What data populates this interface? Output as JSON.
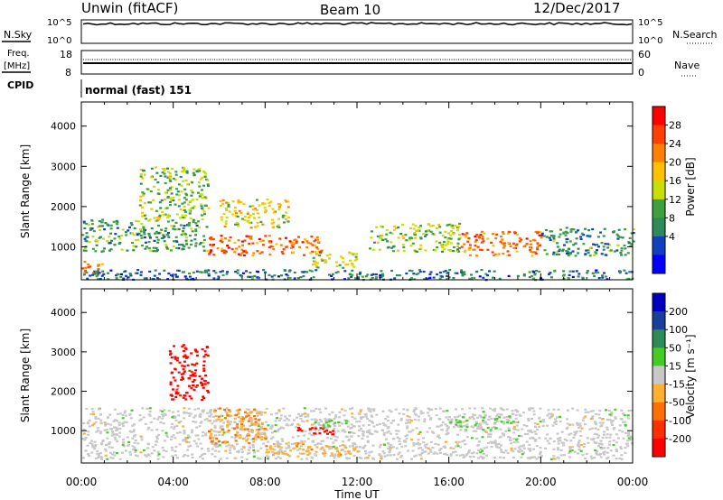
{
  "header": {
    "station": "Unwin (fitACF)",
    "beam": "Beam 10",
    "date": "12/Dec/2017"
  },
  "nsky_panel": {
    "left_label": "N.Sky",
    "right_label": "N.Search",
    "left_ticks": [
      "10^5",
      "10^0"
    ],
    "right_ticks": [
      "10^5",
      "10^0"
    ]
  },
  "freq_panel": {
    "left_label_1": "Freq.",
    "left_label_2": "[MHz]",
    "right_label": "Nave",
    "left_ticks": [
      "18",
      "8"
    ],
    "right_ticks": [
      "60",
      "0"
    ]
  },
  "cpid_panel": {
    "label": "CPID",
    "mode": "normal (fast) 151"
  },
  "chart_data": [
    {
      "type": "heatmap",
      "name": "power",
      "xlabel": "Time UT",
      "ylabel": "Slant Range [km]",
      "x_ticks": [
        "00:00",
        "04:00",
        "08:00",
        "12:00",
        "16:00",
        "20:00",
        "00:00"
      ],
      "x_range_hours": [
        0,
        24
      ],
      "y_ticks": [
        1000,
        2000,
        3000,
        4000
      ],
      "y_range_km": [
        180,
        4600
      ],
      "colorbar_label": "Power [dB]",
      "colorbar_ticks": [
        "28",
        "24",
        "20",
        "16",
        "12",
        "8",
        "4"
      ],
      "colorbar_colors": [
        "#ff0000",
        "#ff4000",
        "#ff8000",
        "#ffc000",
        "#c8e000",
        "#40a040",
        "#2e8b57",
        "#1040c0",
        "#0000ff"
      ],
      "value_range": [
        0,
        32
      ],
      "features": [
        {
          "t0": 0.0,
          "t1": 1.0,
          "r0": 350,
          "r1": 700,
          "value": 26
        },
        {
          "t0": 0.0,
          "t1": 5.5,
          "r0": 900,
          "r1": 1700,
          "value": 11
        },
        {
          "t0": 2.5,
          "t1": 5.5,
          "r0": 1700,
          "r1": 3000,
          "value": 14
        },
        {
          "t0": 5.5,
          "t1": 10.5,
          "r0": 800,
          "r1": 1300,
          "value": 25
        },
        {
          "t0": 6.0,
          "t1": 9.0,
          "r0": 1500,
          "r1": 2200,
          "value": 18
        },
        {
          "t0": 10.0,
          "t1": 12.0,
          "r0": 500,
          "r1": 900,
          "value": 16
        },
        {
          "t0": 12.5,
          "t1": 16.5,
          "r0": 900,
          "r1": 1600,
          "value": 14
        },
        {
          "t0": 16.5,
          "t1": 20.0,
          "r0": 800,
          "r1": 1400,
          "value": 24
        },
        {
          "t0": 20.0,
          "t1": 24.0,
          "r0": 800,
          "r1": 1500,
          "value": 10
        },
        {
          "t0": 0.0,
          "t1": 24.0,
          "r0": 200,
          "r1": 450,
          "value": 8
        }
      ]
    },
    {
      "type": "heatmap",
      "name": "velocity",
      "xlabel": "Time UT",
      "ylabel": "Slant Range [km]",
      "x_ticks": [
        "00:00",
        "04:00",
        "08:00",
        "12:00",
        "16:00",
        "20:00",
        "00:00"
      ],
      "x_range_hours": [
        0,
        24
      ],
      "y_ticks": [
        1000,
        2000,
        3000,
        4000
      ],
      "y_range_km": [
        180,
        4600
      ],
      "colorbar_label": "Velocity [m s⁻¹]",
      "colorbar_ticks": [
        "200",
        "100",
        "50",
        "15",
        "-15",
        "-50",
        "-100",
        "-200"
      ],
      "colorbar_colors": [
        "#0000c0",
        "#1a3f9a",
        "#2e8b57",
        "#44cc22",
        "#c8c8c8",
        "#ffb030",
        "#ff7000",
        "#ff3000",
        "#ff0000"
      ],
      "value_range": [
        -250,
        250
      ],
      "features": [
        {
          "t0": 0.0,
          "t1": 24.0,
          "r0": 300,
          "r1": 1600,
          "value": 0
        },
        {
          "t0": 3.8,
          "t1": 5.5,
          "r0": 1800,
          "r1": 3200,
          "value": -220
        },
        {
          "t0": 5.5,
          "t1": 8.0,
          "r0": 700,
          "r1": 1600,
          "value": -80
        },
        {
          "t0": 9.0,
          "t1": 11.0,
          "r0": 900,
          "r1": 1100,
          "value": -230
        },
        {
          "t0": 10.0,
          "t1": 11.5,
          "r0": 1100,
          "r1": 1300,
          "value": 40
        },
        {
          "t0": 16.0,
          "t1": 19.0,
          "r0": 1000,
          "r1": 1400,
          "value": 30
        },
        {
          "t0": 8.0,
          "t1": 12.0,
          "r0": 400,
          "r1": 700,
          "value": -60
        }
      ]
    }
  ]
}
